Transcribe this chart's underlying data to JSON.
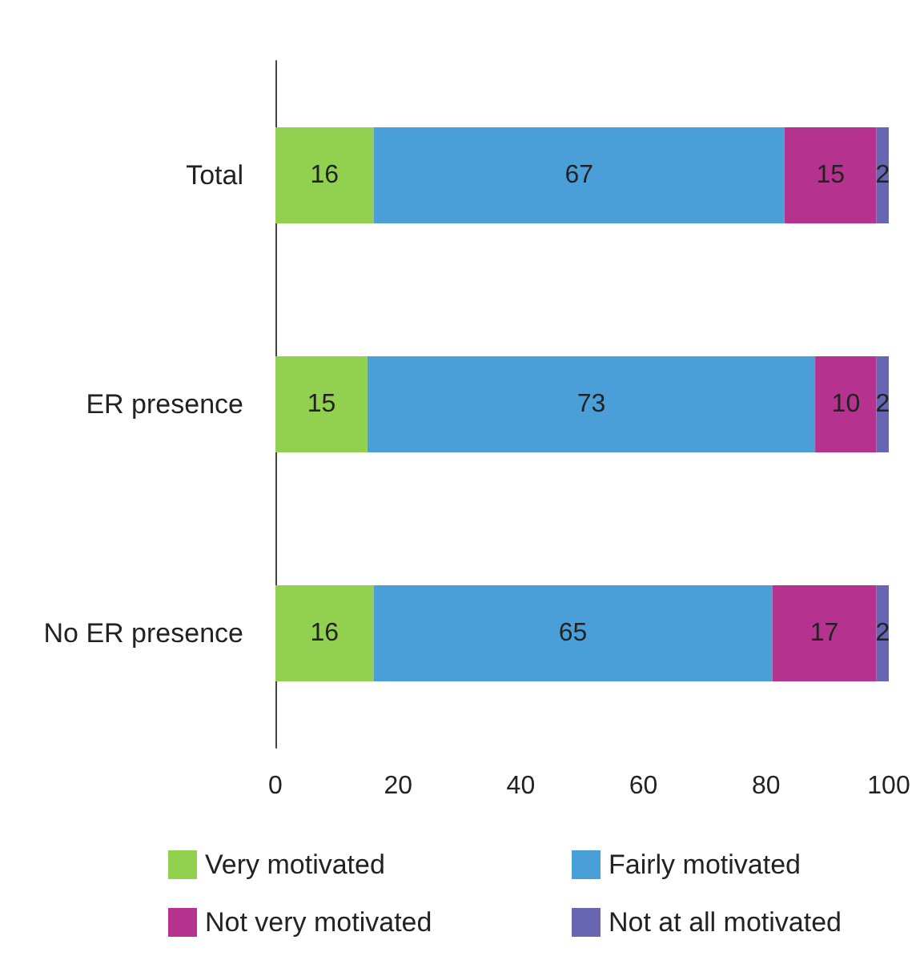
{
  "chart_data": {
    "type": "bar",
    "orientation": "horizontal",
    "stacked": true,
    "data_labels": true,
    "grid": false,
    "legend": "bottom",
    "categories": [
      "Total",
      "ER presence",
      "No ER presence"
    ],
    "series": [
      {
        "name": "Very motivated",
        "color": "#92d050",
        "values": [
          16,
          15,
          16
        ]
      },
      {
        "name": "Fairly motivated",
        "color": "#4a9fd8",
        "values": [
          67,
          73,
          65
        ]
      },
      {
        "name": "Not very motivated",
        "color": "#b5338f",
        "values": [
          15,
          10,
          17
        ]
      },
      {
        "name": "Not at all motivated",
        "color": "#6666b3",
        "values": [
          2,
          2,
          2
        ]
      }
    ],
    "xlim": [
      0,
      100
    ],
    "xticks": [
      0,
      20,
      40,
      60,
      80,
      100
    ]
  }
}
